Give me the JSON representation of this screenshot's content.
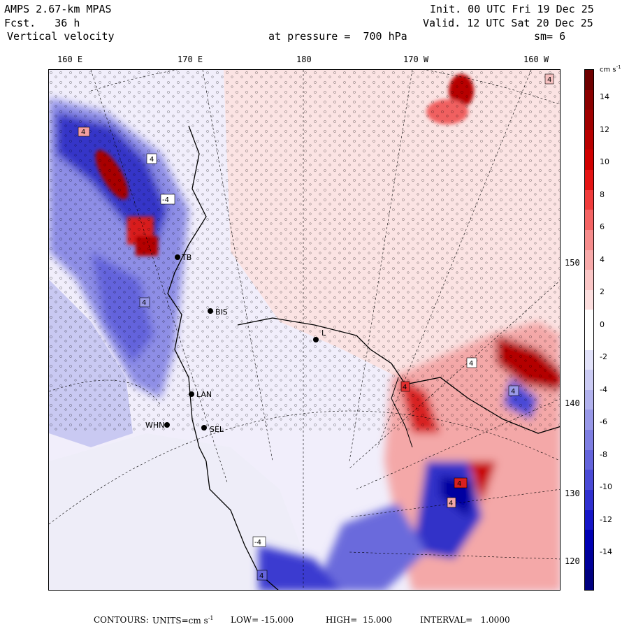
{
  "header": {
    "model": "AMPS 2.67-km MPAS",
    "forecast": "Fcst.   36 h",
    "field": "Vertical velocity",
    "init": "Init. 00 UTC Fri 19 Dec 25",
    "valid": "Valid. 12 UTC Sat 20 Dec 25",
    "pressure": "at pressure =  700 hPa",
    "smoothing": "sm= 6"
  },
  "longitude_labels": [
    "160 E",
    "170 E",
    "180",
    "170 W",
    "160 W"
  ],
  "latitude_labels": [
    "150 W",
    "140 W",
    "130 W",
    "120 W"
  ],
  "stations": [
    {
      "code": "TB"
    },
    {
      "code": "BIS"
    },
    {
      "code": "L"
    },
    {
      "code": "LAN"
    },
    {
      "code": "WHN"
    },
    {
      "code": "SEL"
    }
  ],
  "boxed_labels": [
    "4",
    "4",
    "-4",
    "4",
    "4",
    "4",
    "4",
    "4",
    "4",
    "4",
    "-4",
    "4"
  ],
  "colorbar": {
    "unit": "cm s",
    "unit_exp": "-1",
    "tick_labels": [
      "14",
      "12",
      "10",
      "8",
      "6",
      "4",
      "2",
      "0",
      "-2",
      "-4",
      "-6",
      "-8",
      "-10",
      "-12",
      "-14"
    ],
    "colors": [
      "#6e0000",
      "#8a0000",
      "#a00000",
      "#b80000",
      "#d00000",
      "#e41414",
      "#f03c3c",
      "#f46464",
      "#f68c8c",
      "#f8aaaa",
      "#fac6c6",
      "#fcdede",
      "#ffffff",
      "#ffffff",
      "#e2e2fa",
      "#cbcbf4",
      "#b2b2ee",
      "#9898e8",
      "#7e7ee2",
      "#6464dc",
      "#4a4ad6",
      "#3030d0",
      "#1616c8",
      "#0000b4",
      "#00009a",
      "#000080"
    ]
  },
  "footer": {
    "contours_label": "CONTOURS:",
    "units_label": "UNITS=cm s",
    "units_exp": "-1",
    "low": "LOW= -15.000",
    "high": "HIGH=  15.000",
    "interval": "INTERVAL=   1.0000"
  }
}
